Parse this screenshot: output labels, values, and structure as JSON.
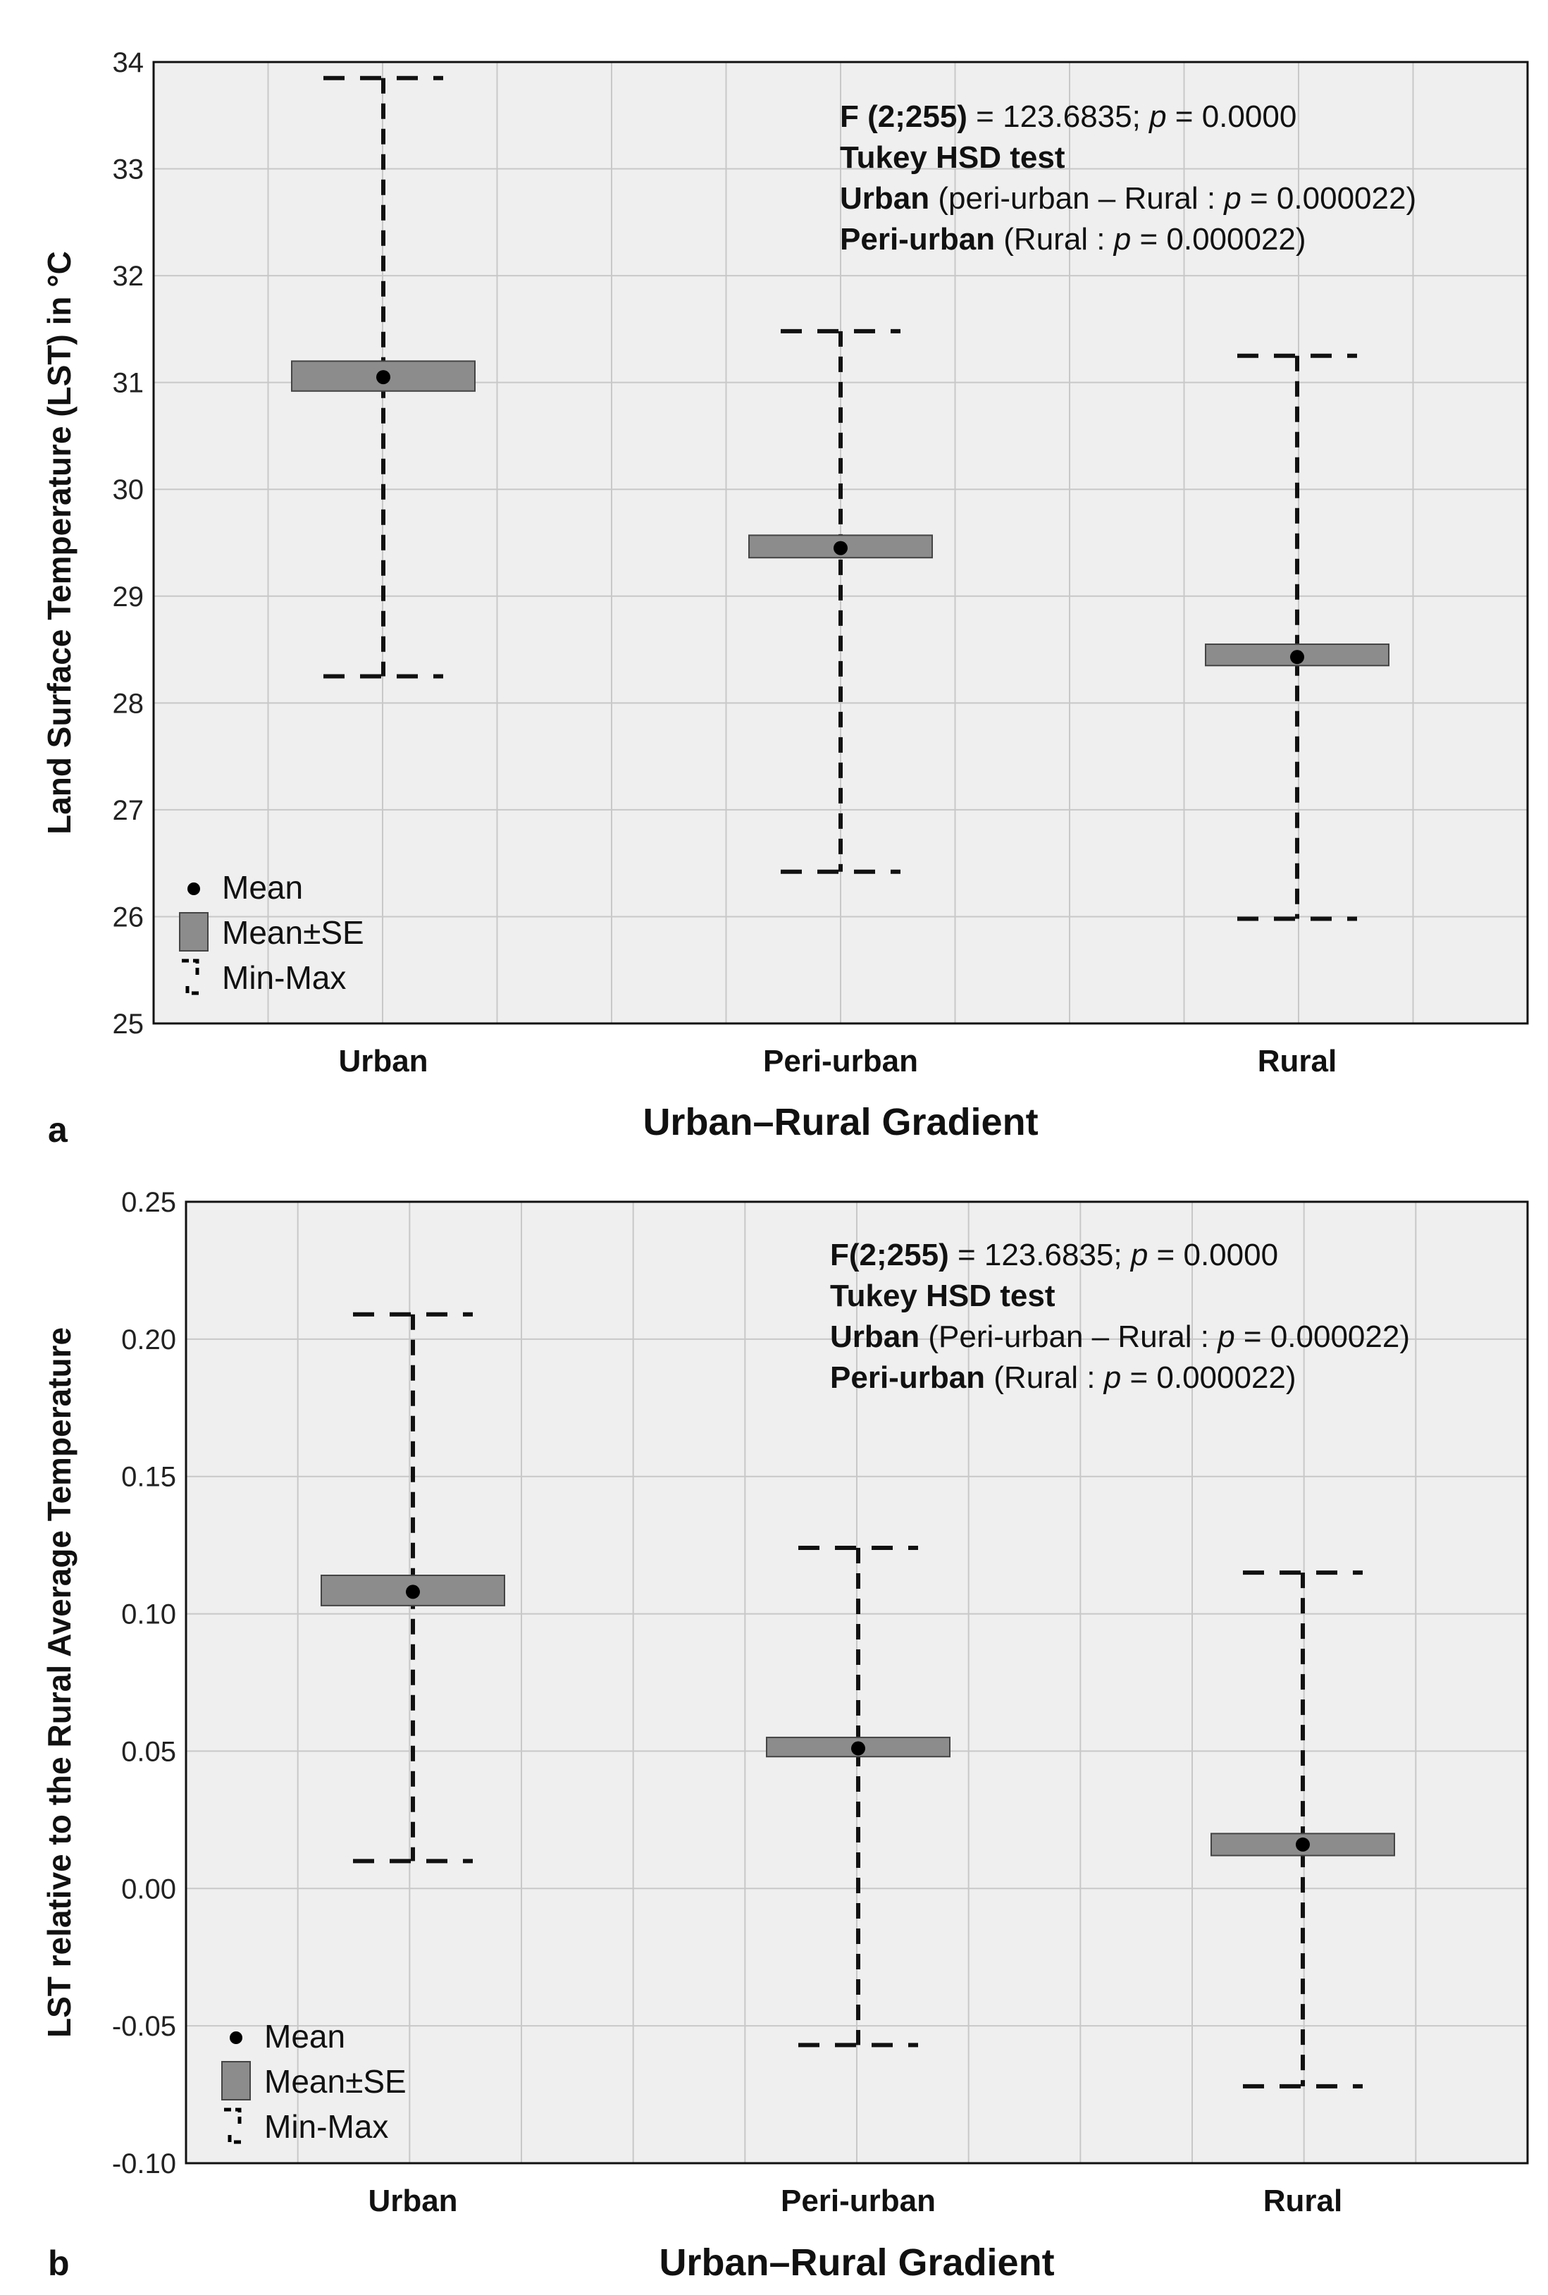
{
  "chart_data": [
    {
      "type": "box",
      "panel_label": "a",
      "xlabel": "Urban–Rural Gradient",
      "ylabel": "Land Surface Temperature (LST) in °C",
      "ylim": [
        25,
        34
      ],
      "yticks": [
        25,
        26,
        27,
        28,
        29,
        30,
        31,
        32,
        33,
        34
      ],
      "ytick_labels": [
        "25",
        "26",
        "27",
        "28",
        "29",
        "30",
        "31",
        "32",
        "33",
        "34"
      ],
      "grid": true,
      "categories": [
        "Urban",
        "Peri-urban",
        "Rural"
      ],
      "mean": [
        31.05,
        29.45,
        28.43
      ],
      "se_low": [
        30.92,
        29.36,
        28.35
      ],
      "se_high": [
        31.2,
        29.57,
        28.55
      ],
      "min": [
        28.25,
        26.42,
        25.98
      ],
      "max": [
        33.85,
        31.48,
        31.25
      ],
      "legend": {
        "placement": "bottom-left",
        "items": [
          "Mean",
          "Mean±SE",
          "Min-Max"
        ]
      },
      "stats": [
        [
          {
            "t": "F (2;255)",
            "b": true
          },
          {
            "t": " = 123.6835; ",
            "b": false
          },
          {
            "t": "p",
            "i": true
          },
          {
            "t": " =  0.0000",
            "b": false
          }
        ],
        [
          {
            "t": "Tukey HSD test",
            "b": true
          }
        ],
        [
          {
            "t": "Urban",
            "b": true
          },
          {
            "t": " (peri-urban – Rural : ",
            "b": false
          },
          {
            "t": "p",
            "i": true
          },
          {
            "t": " = 0.000022)",
            "b": false
          }
        ],
        [
          {
            "t": "Peri-urban",
            "b": true
          },
          {
            "t": " (Rural : ",
            "b": false
          },
          {
            "t": "p",
            "i": true
          },
          {
            "t": " = 0.000022)",
            "b": false
          }
        ]
      ]
    },
    {
      "type": "box",
      "panel_label": "b",
      "xlabel": "Urban–Rural Gradient",
      "ylabel": "LST relative to the Rural Average Temperature",
      "ylim": [
        -0.1,
        0.25
      ],
      "yticks": [
        -0.1,
        -0.05,
        0.0,
        0.05,
        0.1,
        0.15,
        0.2,
        0.25
      ],
      "ytick_labels": [
        "-0.10",
        "-0.05",
        "0.00",
        "0.05",
        "0.10",
        "0.15",
        "0.20",
        "0.25"
      ],
      "grid": true,
      "categories": [
        "Urban",
        "Peri-urban",
        "Rural"
      ],
      "mean": [
        0.108,
        0.051,
        0.016
      ],
      "se_low": [
        0.103,
        0.048,
        0.012
      ],
      "se_high": [
        0.114,
        0.055,
        0.02
      ],
      "min": [
        0.01,
        -0.057,
        -0.072
      ],
      "max": [
        0.209,
        0.124,
        0.115
      ],
      "legend": {
        "placement": "bottom-left",
        "items": [
          "Mean",
          "Mean±SE",
          "Min-Max"
        ]
      },
      "stats": [
        [
          {
            "t": "F(2;255)",
            "b": true
          },
          {
            "t": " = 123.6835; ",
            "b": false
          },
          {
            "t": "p",
            "i": true
          },
          {
            "t": " = 0.0000",
            "b": false
          }
        ],
        [
          {
            "t": "Tukey HSD test",
            "b": true
          }
        ],
        [
          {
            "t": "Urban",
            "b": true
          },
          {
            "t": " (Peri-urban – Rural : ",
            "b": false
          },
          {
            "t": "p",
            "i": true
          },
          {
            "t": " = 0.000022)",
            "b": false
          }
        ],
        [
          {
            "t": "Peri-urban",
            "b": true
          },
          {
            "t": " (Rural : ",
            "b": false
          },
          {
            "t": "p",
            "i": true
          },
          {
            "t": " = 0.000022)",
            "b": false
          }
        ]
      ]
    }
  ],
  "colors": {
    "plot_bg": "#efefef",
    "grid": "#c8c8c8",
    "box": "#8c8c8c",
    "line": "#111111"
  }
}
